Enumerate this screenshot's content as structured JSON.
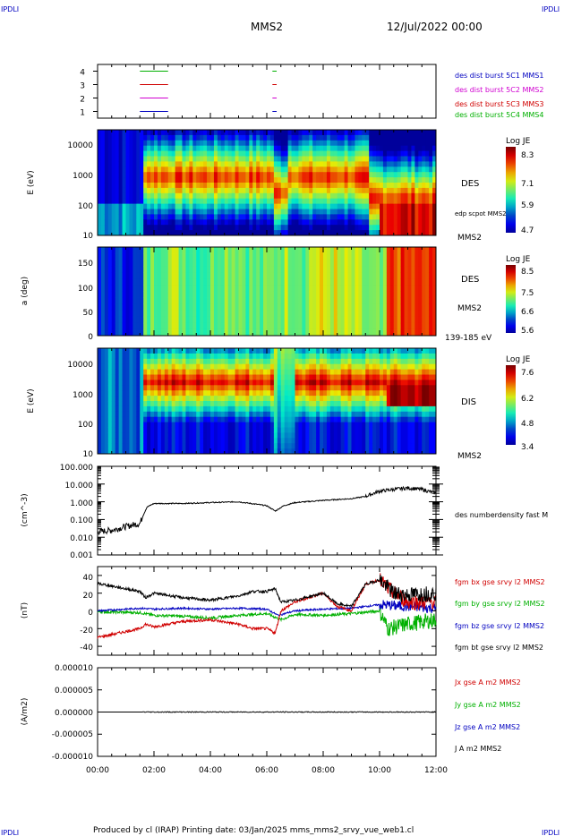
{
  "header": {
    "corner_tl": "IPDLI",
    "corner_tr": "IPDLI",
    "corner_bl": "IPDLI",
    "corner_br": "IPDLI",
    "title": "MMS2",
    "date": "12/Jul/2022 00:00"
  },
  "footer": {
    "text": "Produced by cl (IRAP)   Printing date: 03/Jan/2025   mms_mms2_srvy_vue_web1.cl"
  },
  "x_axis": {
    "ticks": [
      "00:00",
      "02:00",
      "04:00",
      "06:00",
      "08:00",
      "10:00",
      "12:00"
    ]
  },
  "colors": {
    "blue": "#0000c0",
    "magenta": "#d000d0",
    "red": "#d00000",
    "green": "#00b000",
    "black": "#000000"
  },
  "chart_data": [
    {
      "type": "line",
      "panel": "availability",
      "y_ticks": [
        "4",
        "3",
        "2",
        "1"
      ],
      "ylim": [
        0.5,
        4.5
      ],
      "series": [
        {
          "name": "des dist burst 5C1 MMS1",
          "level": 1,
          "color": "#0000c0",
          "segments": [
            [
              1.5,
              2.5
            ],
            [
              6.2,
              6.35
            ]
          ]
        },
        {
          "name": "des dist burst 5C2 MMS2",
          "level": 2,
          "color": "#d000d0",
          "segments": [
            [
              1.5,
              2.5
            ],
            [
              6.2,
              6.35
            ]
          ]
        },
        {
          "name": "des dist burst 5C3 MMS3",
          "level": 3,
          "color": "#d00000",
          "segments": [
            [
              1.5,
              2.5
            ],
            [
              6.2,
              6.35
            ]
          ]
        },
        {
          "name": "des dist burst 5C4 MMS4",
          "level": 4,
          "color": "#00b000",
          "segments": [
            [
              1.5,
              2.5
            ],
            [
              6.2,
              6.35
            ]
          ]
        }
      ]
    },
    {
      "type": "heatmap",
      "panel": "des-energy",
      "ylabel": "E (eV)",
      "y_ticks": [
        "10000",
        "1000",
        "100",
        "10"
      ],
      "ylim": [
        10,
        30000
      ],
      "y_scale": "log",
      "label": "DES",
      "side_labels": [
        "edp scpot MMS2",
        "MMS2"
      ],
      "colorbar": {
        "title": "Log JE",
        "ticks": [
          "8.3",
          "7.1",
          "5.9",
          "4.7"
        ],
        "range": [
          4.7,
          8.3
        ]
      }
    },
    {
      "type": "heatmap",
      "panel": "des-pitch",
      "ylabel": "a (deg)",
      "y_ticks": [
        "150",
        "100",
        "50",
        "0"
      ],
      "ylim": [
        0,
        180
      ],
      "label": "DES",
      "side_labels": [
        "MMS2",
        "139-185 eV"
      ],
      "colorbar": {
        "title": "Log JE",
        "ticks": [
          "8.5",
          "7.5",
          "6.6",
          "5.6"
        ],
        "range": [
          5.6,
          8.5
        ]
      }
    },
    {
      "type": "heatmap",
      "panel": "dis-energy",
      "ylabel": "E (eV)",
      "y_ticks": [
        "10000",
        "1000",
        "100",
        "10"
      ],
      "ylim": [
        10,
        30000
      ],
      "y_scale": "log",
      "label": "DIS",
      "side_labels": [
        "MMS2"
      ],
      "colorbar": {
        "title": "Log JE",
        "ticks": [
          "7.6",
          "6.2",
          "4.8",
          "3.4"
        ],
        "range": [
          3.4,
          7.6
        ]
      }
    },
    {
      "type": "line",
      "panel": "density",
      "ylabel": "(cm^-3)",
      "y_ticks": [
        "100.000",
        "10.000",
        "1.000",
        "0.100",
        "0.010",
        "0.001"
      ],
      "ylim": [
        0.001,
        100
      ],
      "y_scale": "log",
      "series": [
        {
          "name": "des numberdensity fast M",
          "color": "#000000",
          "x": [
            0,
            0.5,
            1.0,
            1.5,
            1.6,
            1.75,
            2.0,
            3.0,
            4.0,
            5.0,
            6.0,
            6.3,
            6.6,
            7.0,
            8.0,
            9.0,
            9.5,
            10.0,
            10.5,
            11.0,
            11.5,
            12.0
          ],
          "y": [
            0.02,
            0.025,
            0.04,
            0.06,
            0.15,
            0.5,
            0.8,
            0.8,
            0.9,
            1.0,
            0.6,
            0.3,
            0.6,
            0.9,
            1.2,
            1.5,
            2.0,
            4.0,
            5.0,
            6.0,
            5.0,
            3.0
          ]
        }
      ]
    },
    {
      "type": "line",
      "panel": "magnetic-field",
      "ylabel": "(nT)",
      "y_ticks": [
        "40",
        "20",
        "0",
        "-20",
        "-40"
      ],
      "ylim": [
        -50,
        50
      ],
      "series": [
        {
          "name": "fgm bx gse srvy l2 MMS2",
          "color": "#d00000",
          "x": [
            0,
            1.5,
            1.7,
            2.0,
            3.0,
            4.0,
            5.0,
            5.5,
            6.0,
            6.3,
            6.5,
            7.0,
            7.5,
            8.0,
            8.5,
            9.0,
            9.5,
            10.0,
            10.3,
            11.0,
            12.0
          ],
          "y": [
            -30,
            -20,
            -15,
            -18,
            -12,
            -10,
            -15,
            -20,
            -20,
            -25,
            0,
            10,
            15,
            20,
            5,
            0,
            30,
            35,
            25,
            10,
            10
          ]
        },
        {
          "name": "fgm by gse srvy l2 MMS2",
          "color": "#00b000",
          "x": [
            0,
            1.5,
            2.0,
            3.0,
            4.0,
            5.0,
            6.0,
            6.5,
            7.0,
            8.0,
            9.0,
            10.0,
            10.3,
            11.0,
            12.0
          ],
          "y": [
            -1,
            -2,
            -5,
            -6,
            -8,
            -5,
            -3,
            -10,
            -4,
            -5,
            -3,
            0,
            -20,
            -15,
            -10
          ]
        },
        {
          "name": "fgm bz gse srvy l2 MMS2",
          "color": "#0000c0",
          "x": [
            0,
            1.5,
            2.0,
            3.0,
            4.0,
            5.0,
            6.0,
            6.4,
            7.0,
            8.0,
            9.0,
            10.0,
            11.0,
            12.0
          ],
          "y": [
            0,
            3,
            2,
            3,
            2,
            3,
            2,
            -5,
            0,
            2,
            3,
            7,
            5,
            3
          ]
        },
        {
          "name": "fgm bt gse srvy l2 MMS2",
          "color": "#000000",
          "x": [
            0,
            1.5,
            1.7,
            2.0,
            3.0,
            4.0,
            5.0,
            5.5,
            6.0,
            6.3,
            6.5,
            7.0,
            7.5,
            8.0,
            8.5,
            9.0,
            9.5,
            10.0,
            10.5,
            11.0,
            12.0
          ],
          "y": [
            31,
            22,
            15,
            20,
            15,
            12,
            17,
            22,
            22,
            25,
            10,
            12,
            16,
            20,
            8,
            5,
            30,
            35,
            20,
            18,
            20
          ]
        }
      ]
    },
    {
      "type": "line",
      "panel": "current-density",
      "ylabel": "(A/m2)",
      "y_ticks": [
        "0.000010",
        "0.000005",
        "0.000000",
        "-0.000005",
        "-0.000010"
      ],
      "ylim": [
        -1e-05,
        1e-05
      ],
      "series": [
        {
          "name": "Jx gse A m2 MMS2",
          "color": "#d00000",
          "x": [
            0,
            12
          ],
          "y": [
            0,
            0
          ]
        },
        {
          "name": "Jy gse A m2 MMS2",
          "color": "#00b000",
          "x": [
            0,
            12
          ],
          "y": [
            0,
            0
          ]
        },
        {
          "name": "Jz gse A m2 MMS2",
          "color": "#0000c0",
          "x": [
            0,
            12
          ],
          "y": [
            0,
            0
          ]
        },
        {
          "name": "J A m2 MMS2",
          "color": "#000000",
          "x": [
            0,
            12
          ],
          "y": [
            0,
            0
          ]
        }
      ]
    }
  ]
}
